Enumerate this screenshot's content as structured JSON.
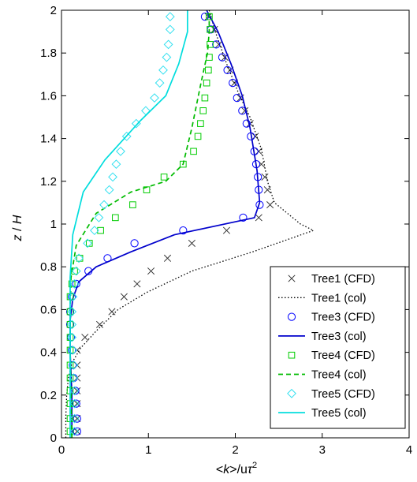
{
  "chart_data": {
    "type": "line",
    "title": "",
    "xlabel": {
      "pre": "<",
      "k": "k",
      "mid": ">/u",
      "tau": "τ",
      "sup": "2"
    },
    "ylabel": {
      "z": "z",
      "sep": " / ",
      "H": "H"
    },
    "xlim": [
      0,
      4
    ],
    "ylim": [
      0,
      2
    ],
    "xticks": [
      "0",
      "1",
      "2",
      "3",
      "4"
    ],
    "yticks": [
      "0",
      "0.2",
      "0.4",
      "0.6",
      "0.8",
      "1",
      "1.2",
      "1.4",
      "1.6",
      "1.8",
      "2"
    ],
    "grid": false,
    "legend_position": "bottom-right",
    "series": [
      {
        "name": "Tree1 (CFD)",
        "kind": "marker",
        "marker": "x",
        "color": "#333333",
        "points": [
          [
            0.18,
            0.03
          ],
          [
            0.18,
            0.09
          ],
          [
            0.18,
            0.16
          ],
          [
            0.18,
            0.22
          ],
          [
            0.18,
            0.28
          ],
          [
            0.18,
            0.34
          ],
          [
            0.18,
            0.41
          ],
          [
            0.27,
            0.47
          ],
          [
            0.44,
            0.53
          ],
          [
            0.58,
            0.59
          ],
          [
            0.72,
            0.66
          ],
          [
            0.87,
            0.72
          ],
          [
            1.03,
            0.78
          ],
          [
            1.22,
            0.84
          ],
          [
            1.5,
            0.91
          ],
          [
            1.9,
            0.97
          ],
          [
            2.27,
            1.03
          ],
          [
            2.4,
            1.09
          ],
          [
            2.37,
            1.16
          ],
          [
            2.34,
            1.22
          ],
          [
            2.3,
            1.28
          ],
          [
            2.27,
            1.34
          ],
          [
            2.23,
            1.41
          ],
          [
            2.17,
            1.47
          ],
          [
            2.11,
            1.53
          ],
          [
            2.06,
            1.59
          ],
          [
            1.99,
            1.66
          ],
          [
            1.94,
            1.72
          ],
          [
            1.88,
            1.78
          ],
          [
            1.81,
            1.84
          ],
          [
            1.76,
            1.91
          ],
          [
            1.69,
            1.97
          ]
        ]
      },
      {
        "name": "Tree1 (col)",
        "kind": "line",
        "dash": "1.5,2.5",
        "width": 1.3,
        "color": "#000000",
        "points": [
          [
            0.05,
            0
          ],
          [
            0.05,
            0.1
          ],
          [
            0.06,
            0.2
          ],
          [
            0.08,
            0.28
          ],
          [
            0.12,
            0.35
          ],
          [
            0.22,
            0.42
          ],
          [
            0.4,
            0.5
          ],
          [
            0.65,
            0.6
          ],
          [
            0.98,
            0.68
          ],
          [
            1.5,
            0.78
          ],
          [
            2.2,
            0.87
          ],
          [
            2.9,
            0.97
          ],
          [
            2.75,
            1.0
          ],
          [
            2.45,
            1.1
          ],
          [
            2.37,
            1.2
          ],
          [
            2.3,
            1.35
          ],
          [
            2.17,
            1.5
          ],
          [
            2.05,
            1.6
          ],
          [
            1.9,
            1.75
          ],
          [
            1.77,
            1.9
          ],
          [
            1.7,
            2.0
          ]
        ]
      },
      {
        "name": "Tree3 (CFD)",
        "kind": "marker",
        "marker": "circle",
        "color": "#0000ff",
        "points": [
          [
            0.18,
            0.03
          ],
          [
            0.18,
            0.09
          ],
          [
            0.17,
            0.16
          ],
          [
            0.16,
            0.22
          ],
          [
            0.14,
            0.28
          ],
          [
            0.13,
            0.34
          ],
          [
            0.12,
            0.41
          ],
          [
            0.11,
            0.47
          ],
          [
            0.1,
            0.53
          ],
          [
            0.1,
            0.59
          ],
          [
            0.12,
            0.66
          ],
          [
            0.17,
            0.72
          ],
          [
            0.31,
            0.78
          ],
          [
            0.53,
            0.84
          ],
          [
            0.84,
            0.91
          ],
          [
            1.4,
            0.97
          ],
          [
            2.09,
            1.03
          ],
          [
            2.28,
            1.09
          ],
          [
            2.27,
            1.16
          ],
          [
            2.26,
            1.22
          ],
          [
            2.24,
            1.28
          ],
          [
            2.22,
            1.34
          ],
          [
            2.18,
            1.41
          ],
          [
            2.13,
            1.47
          ],
          [
            2.08,
            1.53
          ],
          [
            2.02,
            1.59
          ],
          [
            1.97,
            1.66
          ],
          [
            1.91,
            1.72
          ],
          [
            1.85,
            1.78
          ],
          [
            1.78,
            1.84
          ],
          [
            1.72,
            1.91
          ],
          [
            1.65,
            1.97
          ]
        ]
      },
      {
        "name": "Tree3 (col)",
        "kind": "line",
        "dash": "",
        "width": 1.7,
        "color": "#0000cc",
        "points": [
          [
            0.12,
            0
          ],
          [
            0.12,
            0.2
          ],
          [
            0.1,
            0.4
          ],
          [
            0.1,
            0.55
          ],
          [
            0.13,
            0.65
          ],
          [
            0.2,
            0.73
          ],
          [
            0.4,
            0.8
          ],
          [
            0.8,
            0.87
          ],
          [
            1.3,
            0.95
          ],
          [
            2.22,
            1.03
          ],
          [
            2.28,
            1.1
          ],
          [
            2.25,
            1.25
          ],
          [
            2.17,
            1.45
          ],
          [
            2.08,
            1.6
          ],
          [
            1.95,
            1.75
          ],
          [
            1.8,
            1.9
          ],
          [
            1.67,
            2.0
          ]
        ]
      },
      {
        "name": "Tree4 (CFD)",
        "kind": "marker",
        "marker": "square",
        "color": "#00cc00",
        "points": [
          [
            0.1,
            0.03
          ],
          [
            0.1,
            0.09
          ],
          [
            0.1,
            0.16
          ],
          [
            0.1,
            0.22
          ],
          [
            0.1,
            0.28
          ],
          [
            0.1,
            0.34
          ],
          [
            0.1,
            0.41
          ],
          [
            0.1,
            0.47
          ],
          [
            0.1,
            0.53
          ],
          [
            0.1,
            0.59
          ],
          [
            0.1,
            0.66
          ],
          [
            0.12,
            0.72
          ],
          [
            0.15,
            0.78
          ],
          [
            0.21,
            0.84
          ],
          [
            0.32,
            0.91
          ],
          [
            0.45,
            0.97
          ],
          [
            0.62,
            1.03
          ],
          [
            0.82,
            1.09
          ],
          [
            0.98,
            1.16
          ],
          [
            1.18,
            1.22
          ],
          [
            1.4,
            1.28
          ],
          [
            1.52,
            1.34
          ],
          [
            1.57,
            1.41
          ],
          [
            1.6,
            1.47
          ],
          [
            1.63,
            1.53
          ],
          [
            1.65,
            1.59
          ],
          [
            1.67,
            1.66
          ],
          [
            1.69,
            1.72
          ],
          [
            1.7,
            1.78
          ],
          [
            1.71,
            1.84
          ],
          [
            1.71,
            1.91
          ],
          [
            1.7,
            1.97
          ]
        ]
      },
      {
        "name": "Tree4 (col)",
        "kind": "line",
        "dash": "6,4",
        "width": 1.7,
        "color": "#00bb00",
        "points": [
          [
            0.12,
            0
          ],
          [
            0.11,
            0.2
          ],
          [
            0.1,
            0.4
          ],
          [
            0.1,
            0.6
          ],
          [
            0.11,
            0.75
          ],
          [
            0.17,
            0.9
          ],
          [
            0.4,
            1.05
          ],
          [
            0.8,
            1.15
          ],
          [
            1.2,
            1.2
          ],
          [
            1.4,
            1.28
          ],
          [
            1.5,
            1.45
          ],
          [
            1.6,
            1.65
          ],
          [
            1.68,
            1.8
          ],
          [
            1.7,
            1.9
          ],
          [
            1.7,
            2.0
          ]
        ]
      },
      {
        "name": "Tree5 (CFD)",
        "kind": "marker",
        "marker": "diamond",
        "color": "#33e0f0",
        "points": [
          [
            0.15,
            0.03
          ],
          [
            0.15,
            0.09
          ],
          [
            0.15,
            0.16
          ],
          [
            0.15,
            0.22
          ],
          [
            0.14,
            0.28
          ],
          [
            0.14,
            0.34
          ],
          [
            0.13,
            0.41
          ],
          [
            0.12,
            0.47
          ],
          [
            0.12,
            0.53
          ],
          [
            0.12,
            0.59
          ],
          [
            0.13,
            0.66
          ],
          [
            0.15,
            0.72
          ],
          [
            0.17,
            0.78
          ],
          [
            0.2,
            0.84
          ],
          [
            0.3,
            0.91
          ],
          [
            0.38,
            0.97
          ],
          [
            0.43,
            1.03
          ],
          [
            0.49,
            1.09
          ],
          [
            0.55,
            1.16
          ],
          [
            0.59,
            1.22
          ],
          [
            0.63,
            1.28
          ],
          [
            0.68,
            1.34
          ],
          [
            0.75,
            1.41
          ],
          [
            0.86,
            1.47
          ],
          [
            0.97,
            1.53
          ],
          [
            1.07,
            1.59
          ],
          [
            1.13,
            1.66
          ],
          [
            1.17,
            1.72
          ],
          [
            1.21,
            1.78
          ],
          [
            1.23,
            1.84
          ],
          [
            1.25,
            1.91
          ],
          [
            1.25,
            1.97
          ]
        ]
      },
      {
        "name": "Tree5 (col)",
        "kind": "line",
        "dash": "",
        "width": 1.7,
        "color": "#00dddd",
        "points": [
          [
            0.1,
            0
          ],
          [
            0.1,
            0.2
          ],
          [
            0.1,
            0.4
          ],
          [
            0.1,
            0.6
          ],
          [
            0.1,
            0.75
          ],
          [
            0.13,
            0.95
          ],
          [
            0.25,
            1.15
          ],
          [
            0.5,
            1.3
          ],
          [
            0.9,
            1.48
          ],
          [
            1.2,
            1.6
          ],
          [
            1.35,
            1.75
          ],
          [
            1.45,
            1.9
          ],
          [
            1.45,
            2.0
          ]
        ]
      }
    ]
  }
}
